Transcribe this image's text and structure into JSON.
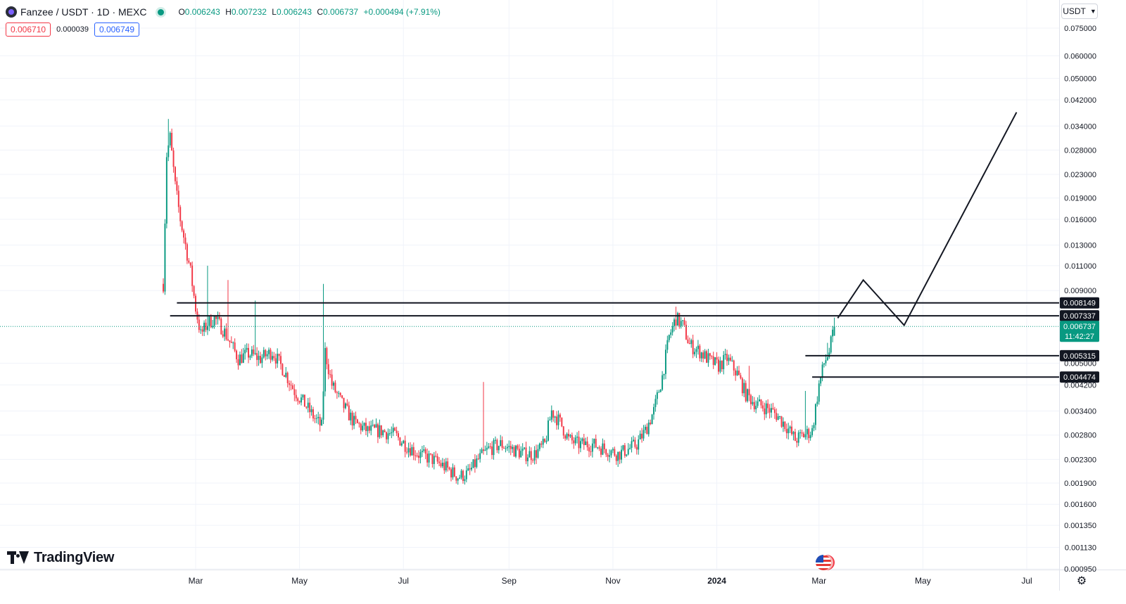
{
  "header": {
    "symbol_title": "Fanzee / USDT · 1D · MEXC",
    "ohlc": {
      "open_label": "O",
      "open": "0.006243",
      "high_label": "H",
      "high": "0.007232",
      "low_label": "L",
      "low": "0.006243",
      "close_label": "C",
      "close": "0.006737",
      "change": "+0.000494 (+7.91%)"
    },
    "sell_price": "0.006710",
    "spread": "0.000039",
    "buy_price": "0.006749",
    "currency": "USDT"
  },
  "brand": "TradingView",
  "colors": {
    "up": "#089981",
    "down": "#f23645",
    "line": "#131722",
    "grid": "#f0f3fa",
    "sell": "#f23645",
    "buy": "#2962ff",
    "last_price_bg": "#089981"
  },
  "icons": [
    "symbol-icon",
    "status-dot-icon",
    "chevron-down-icon",
    "tradingview-logo-icon",
    "us-flag-icon",
    "gear-icon"
  ],
  "chart_data": {
    "type": "candlestick",
    "title": "Fanzee / USDT · 1D · MEXC",
    "scale": "log",
    "ylim": [
      0.0009,
      0.082
    ],
    "xlim": [
      "2023-01-01",
      "2024-07-31"
    ],
    "grid": true,
    "y_ticks": [
      "0.075000",
      "0.060000",
      "0.050000",
      "0.042000",
      "0.034000",
      "0.028000",
      "0.023000",
      "0.019000",
      "0.016000",
      "0.013000",
      "0.011000",
      "0.009000",
      "0.005000",
      "0.004200",
      "0.003400",
      "0.002800",
      "0.002300",
      "0.001900",
      "0.001600",
      "0.001350",
      "0.001130",
      "0.000950"
    ],
    "x_ticks": [
      {
        "label": "Mar",
        "date": "2023-03-01"
      },
      {
        "label": "May",
        "date": "2023-05-01"
      },
      {
        "label": "Jul",
        "date": "2023-07-01"
      },
      {
        "label": "Sep",
        "date": "2023-09-01"
      },
      {
        "label": "Nov",
        "date": "2023-11-01"
      },
      {
        "label": "2024",
        "date": "2024-01-01"
      },
      {
        "label": "Mar",
        "date": "2024-03-01"
      },
      {
        "label": "May",
        "date": "2024-05-01"
      },
      {
        "label": "Jul",
        "date": "2024-07-01"
      }
    ],
    "price_path": [
      [
        "2023-02-10",
        0.0095
      ],
      [
        "2023-02-12",
        0.027
      ],
      [
        "2023-02-14",
        0.031
      ],
      [
        "2023-02-17",
        0.021
      ],
      [
        "2023-02-20",
        0.016
      ],
      [
        "2023-02-23",
        0.013
      ],
      [
        "2023-02-26",
        0.0105
      ],
      [
        "2023-03-01",
        0.0078
      ],
      [
        "2023-03-04",
        0.0063
      ],
      [
        "2023-03-08",
        0.0069
      ],
      [
        "2023-03-12",
        0.0072
      ],
      [
        "2023-03-17",
        0.0066
      ],
      [
        "2023-03-22",
        0.0058
      ],
      [
        "2023-03-26",
        0.0052
      ],
      [
        "2023-04-01",
        0.0054
      ],
      [
        "2023-04-08",
        0.0052
      ],
      [
        "2023-04-15",
        0.0055
      ],
      [
        "2023-04-22",
        0.0047
      ],
      [
        "2023-04-28",
        0.004
      ],
      [
        "2023-05-04",
        0.0036
      ],
      [
        "2023-05-10",
        0.0032
      ],
      [
        "2023-05-14",
        0.003
      ],
      [
        "2023-05-16",
        0.0055
      ],
      [
        "2023-05-20",
        0.0042
      ],
      [
        "2023-05-26",
        0.0036
      ],
      [
        "2023-06-02",
        0.0031
      ],
      [
        "2023-06-10",
        0.0029
      ],
      [
        "2023-06-18",
        0.0029
      ],
      [
        "2023-06-26",
        0.0028
      ],
      [
        "2023-07-02",
        0.0026
      ],
      [
        "2023-07-10",
        0.0024
      ],
      [
        "2023-07-18",
        0.0023
      ],
      [
        "2023-07-26",
        0.00215
      ],
      [
        "2023-08-02",
        0.002
      ],
      [
        "2023-08-08",
        0.00205
      ],
      [
        "2023-08-14",
        0.0023
      ],
      [
        "2023-08-20",
        0.0025
      ],
      [
        "2023-08-27",
        0.0026
      ],
      [
        "2023-09-03",
        0.0025
      ],
      [
        "2023-09-10",
        0.0024
      ],
      [
        "2023-09-16",
        0.0024
      ],
      [
        "2023-09-22",
        0.0026
      ],
      [
        "2023-09-26",
        0.0034
      ],
      [
        "2023-10-01",
        0.0031
      ],
      [
        "2023-10-06",
        0.0027
      ],
      [
        "2023-10-12",
        0.0026
      ],
      [
        "2023-10-20",
        0.0026
      ],
      [
        "2023-10-28",
        0.0025
      ],
      [
        "2023-11-04",
        0.0024
      ],
      [
        "2023-11-10",
        0.0025
      ],
      [
        "2023-11-15",
        0.0026
      ],
      [
        "2023-11-20",
        0.0029
      ],
      [
        "2023-11-25",
        0.0034
      ],
      [
        "2023-11-30",
        0.0045
      ],
      [
        "2023-12-04",
        0.0062
      ],
      [
        "2023-12-08",
        0.0072
      ],
      [
        "2023-12-12",
        0.0068
      ],
      [
        "2023-12-16",
        0.0058
      ],
      [
        "2023-12-22",
        0.0055
      ],
      [
        "2023-12-28",
        0.0051
      ],
      [
        "2024-01-02",
        0.0049
      ],
      [
        "2024-01-07",
        0.0052
      ],
      [
        "2024-01-13",
        0.0046
      ],
      [
        "2024-01-18",
        0.0039
      ],
      [
        "2024-01-24",
        0.0036
      ],
      [
        "2024-01-30",
        0.0035
      ],
      [
        "2024-02-05",
        0.0033
      ],
      [
        "2024-02-11",
        0.003
      ],
      [
        "2024-02-16",
        0.0027
      ],
      [
        "2024-02-21",
        0.0028
      ],
      [
        "2024-02-26",
        0.0029
      ],
      [
        "2024-03-01",
        0.0042
      ],
      [
        "2024-03-04",
        0.005
      ],
      [
        "2024-03-07",
        0.0055
      ],
      [
        "2024-03-10",
        0.0067
      ]
    ],
    "spikes": [
      {
        "date": "2023-02-13",
        "high": 0.036
      },
      {
        "date": "2023-03-08",
        "high": 0.011
      },
      {
        "date": "2023-03-20",
        "high": 0.0098
      },
      {
        "date": "2023-04-05",
        "high": 0.0083
      },
      {
        "date": "2023-05-15",
        "high": 0.0095
      },
      {
        "date": "2023-08-17",
        "high": 0.0043
      },
      {
        "date": "2023-12-08",
        "high": 0.0079
      },
      {
        "date": "2024-01-20",
        "high": 0.0049
      },
      {
        "date": "2024-02-22",
        "high": 0.004
      },
      {
        "date": "2024-03-06",
        "high": 0.0059
      }
    ],
    "last": {
      "date": "2024-03-10",
      "open": 0.006243,
      "high": 0.007232,
      "low": 0.006243,
      "close": 0.006737
    },
    "last_price_label": "0.006737",
    "countdown": "11:42:27",
    "horizontal_levels": [
      {
        "value": 0.008149,
        "label": "0.008149",
        "start": "2023-02-18"
      },
      {
        "value": 0.007337,
        "label": "0.007337",
        "start": "2023-02-14"
      },
      {
        "value": 0.005315,
        "label": "0.005315",
        "start": "2024-02-22"
      },
      {
        "value": 0.004474,
        "label": "0.004474",
        "start": "2024-02-26"
      }
    ],
    "projection_path": [
      [
        "2024-03-12",
        0.0072
      ],
      [
        "2024-03-27",
        0.0098
      ],
      [
        "2024-04-20",
        0.0068
      ],
      [
        "2024-06-25",
        0.038
      ]
    ]
  }
}
